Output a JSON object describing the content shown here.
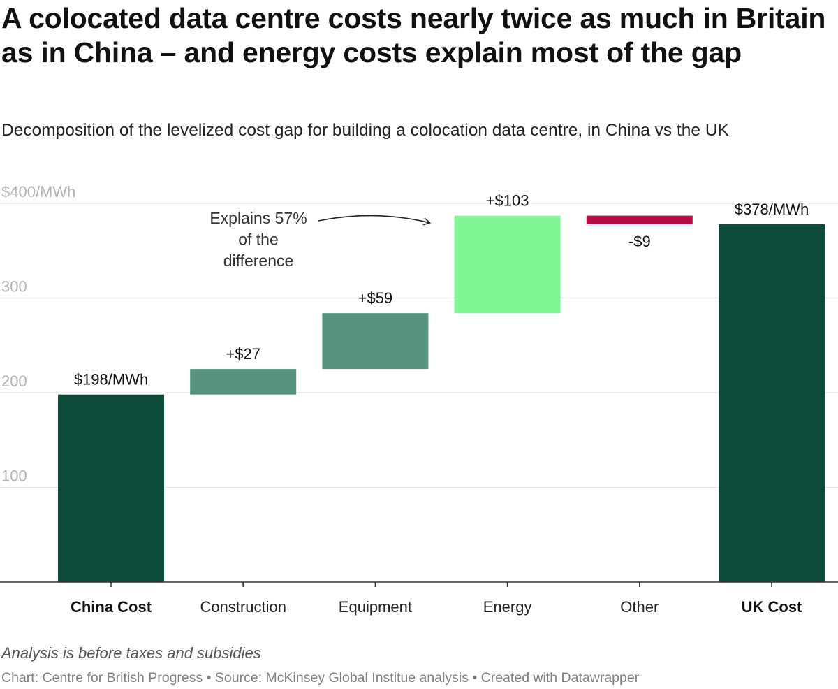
{
  "chart_data": {
    "type": "bar",
    "subtype": "waterfall",
    "title": "A colocated data centre costs nearly twice as much in Britain as in China – and energy costs explain most of the gap",
    "subtitle": "Decomposition of the levelized cost gap for building a colocation data centre, in China vs the UK",
    "categories": [
      "China Cost",
      "Construction",
      "Equipment",
      "Energy",
      "Other",
      "UK Cost"
    ],
    "values": [
      198,
      27,
      59,
      103,
      -9,
      378
    ],
    "bar_kinds": [
      "total",
      "delta",
      "delta",
      "delta",
      "delta",
      "total"
    ],
    "value_labels": [
      "$198/MWh",
      "+$27",
      "+$59",
      "+$103",
      "-$9",
      "$378/MWh"
    ],
    "ylim": [
      0,
      400
    ],
    "yticks": [
      100,
      200,
      300,
      400
    ],
    "ytick_labels": [
      "100",
      "200",
      "300",
      "$400/MWh"
    ],
    "grid": true,
    "colors": {
      "total": "#0c4a3a",
      "increase": "#57927c",
      "energy": "#81f593",
      "decrease": "#b70a42",
      "grid": "#e3e3e3",
      "axis": "#333333"
    },
    "annotation": {
      "text_lines": [
        "Explains 57%",
        "of the",
        "difference"
      ],
      "target_category": "Energy"
    },
    "notes": "Analysis is before taxes and subsidies",
    "footer": "Chart: Centre for British Progress • Source: McKinsey Global Institue analysis • Created with Datawrapper"
  }
}
